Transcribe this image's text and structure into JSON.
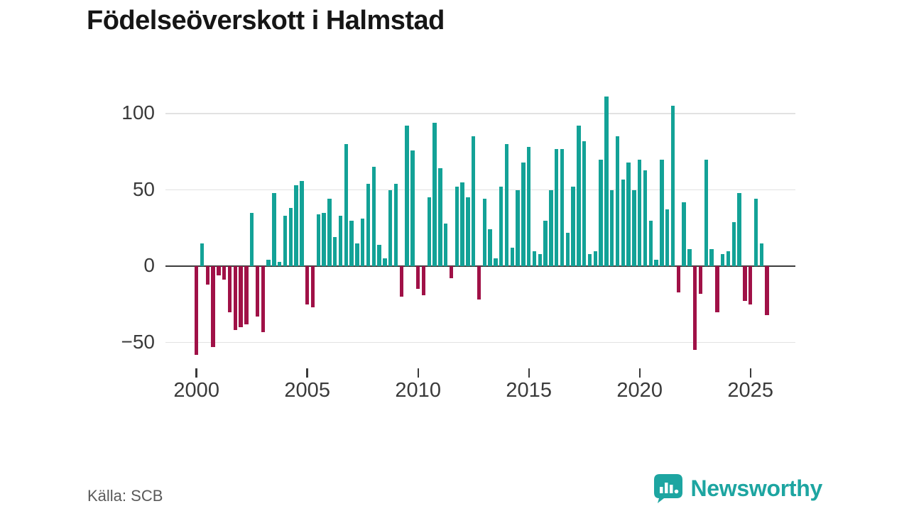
{
  "title": "Födelseöverskott i Halmstad",
  "source": "Källa: SCB",
  "logo": {
    "text": "Newsworthy",
    "icon": "newsworthy-chart-bubble-icon",
    "color": "#1da5a1"
  },
  "chart_data": {
    "type": "bar",
    "title": "Födelseöverskott i Halmstad",
    "xlabel": "",
    "ylabel": "",
    "ylim": [
      -70,
      115
    ],
    "yticks": [
      100,
      50,
      0,
      -50
    ],
    "xticks": [
      2000,
      2005,
      2010,
      2015,
      2020,
      2025
    ],
    "grid": true,
    "legend": "none",
    "positive_color": "#13a297",
    "negative_color": "#a01147",
    "x": [
      "2000 Q1",
      "2000 Q2",
      "2000 Q3",
      "2000 Q4",
      "2001 Q1",
      "2001 Q2",
      "2001 Q3",
      "2001 Q4",
      "2002 Q1",
      "2002 Q2",
      "2002 Q3",
      "2002 Q4",
      "2003 Q1",
      "2003 Q2",
      "2003 Q3",
      "2003 Q4",
      "2004 Q1",
      "2004 Q2",
      "2004 Q3",
      "2004 Q4",
      "2005 Q1",
      "2005 Q2",
      "2005 Q3",
      "2005 Q4",
      "2006 Q1",
      "2006 Q2",
      "2006 Q3",
      "2006 Q4",
      "2007 Q1",
      "2007 Q2",
      "2007 Q3",
      "2007 Q4",
      "2008 Q1",
      "2008 Q2",
      "2008 Q3",
      "2008 Q4",
      "2009 Q1",
      "2009 Q2",
      "2009 Q3",
      "2009 Q4",
      "2010 Q1",
      "2010 Q2",
      "2010 Q3",
      "2010 Q4",
      "2011 Q1",
      "2011 Q2",
      "2011 Q3",
      "2011 Q4",
      "2012 Q1",
      "2012 Q2",
      "2012 Q3",
      "2012 Q4",
      "2013 Q1",
      "2013 Q2",
      "2013 Q3",
      "2013 Q4",
      "2014 Q1",
      "2014 Q2",
      "2014 Q3",
      "2014 Q4",
      "2015 Q1",
      "2015 Q2",
      "2015 Q3",
      "2015 Q4",
      "2016 Q1",
      "2016 Q2",
      "2016 Q3",
      "2016 Q4",
      "2017 Q1",
      "2017 Q2",
      "2017 Q3",
      "2017 Q4",
      "2018 Q1",
      "2018 Q2",
      "2018 Q3",
      "2018 Q4",
      "2019 Q1",
      "2019 Q2",
      "2019 Q3",
      "2019 Q4",
      "2020 Q1",
      "2020 Q2",
      "2020 Q3",
      "2020 Q4",
      "2021 Q1",
      "2021 Q2",
      "2021 Q3",
      "2021 Q4",
      "2022 Q1",
      "2022 Q2",
      "2022 Q3",
      "2022 Q4",
      "2023 Q1",
      "2023 Q2",
      "2023 Q3",
      "2023 Q4",
      "2024 Q1",
      "2024 Q2",
      "2024 Q3",
      "2024 Q4",
      "2025 Q1",
      "2025 Q2",
      "2025 Q3",
      "2025 Q4"
    ],
    "values": [
      -58,
      15,
      -12,
      -53,
      -6,
      -9,
      -30,
      -42,
      -40,
      -38,
      35,
      -33,
      -43,
      4,
      48,
      3,
      33,
      38,
      53,
      56,
      -25,
      -27,
      34,
      35,
      44,
      19,
      33,
      80,
      30,
      15,
      31,
      54,
      65,
      14,
      5,
      50,
      54,
      -20,
      92,
      76,
      -15,
      -19,
      45,
      94,
      64,
      28,
      -8,
      52,
      55,
      45,
      85,
      -22,
      44,
      24,
      5,
      52,
      80,
      12,
      50,
      68,
      78,
      10,
      8,
      30,
      50,
      77,
      77,
      22,
      52,
      92,
      82,
      8,
      10,
      70,
      111,
      50,
      85,
      57,
      68,
      50,
      70,
      63,
      30,
      4,
      70,
      37,
      105,
      -17,
      42,
      11,
      -55,
      -18,
      70,
      11,
      -30,
      8,
      10,
      29,
      48,
      -23,
      -25,
      44,
      15,
      -32
    ]
  }
}
